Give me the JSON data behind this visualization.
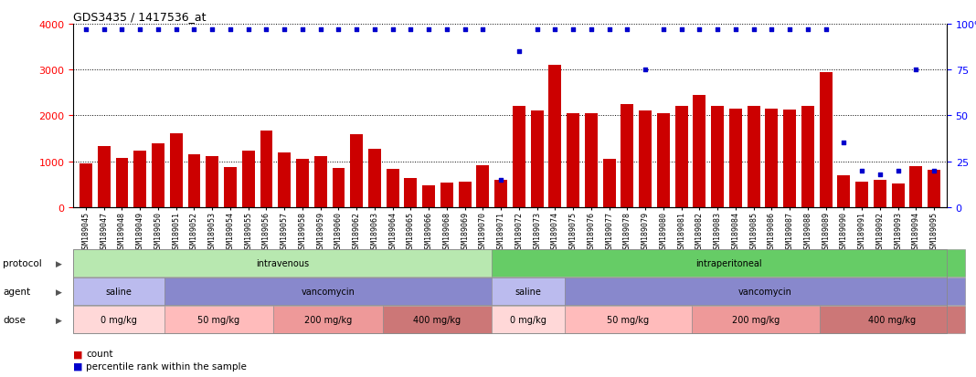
{
  "title": "GDS3435 / 1417536_at",
  "samples": [
    "GSM189045",
    "GSM189047",
    "GSM189048",
    "GSM189049",
    "GSM189050",
    "GSM189051",
    "GSM189052",
    "GSM189053",
    "GSM189054",
    "GSM189055",
    "GSM189056",
    "GSM189057",
    "GSM189058",
    "GSM189059",
    "GSM189060",
    "GSM189062",
    "GSM189063",
    "GSM189064",
    "GSM189065",
    "GSM189066",
    "GSM189068",
    "GSM189069",
    "GSM189070",
    "GSM189071",
    "GSM189072",
    "GSM189073",
    "GSM189074",
    "GSM189075",
    "GSM189076",
    "GSM189077",
    "GSM189078",
    "GSM189079",
    "GSM189080",
    "GSM189081",
    "GSM189082",
    "GSM189083",
    "GSM189084",
    "GSM189085",
    "GSM189086",
    "GSM189087",
    "GSM189088",
    "GSM189089",
    "GSM189090",
    "GSM189091",
    "GSM189092",
    "GSM189093",
    "GSM189094",
    "GSM189095"
  ],
  "bar_values": [
    950,
    1320,
    1060,
    1230,
    1380,
    1600,
    1150,
    1100,
    880,
    1230,
    1670,
    1180,
    1040,
    1110,
    850,
    1580,
    1260,
    830,
    640,
    480,
    530,
    560,
    920,
    600,
    2200,
    2100,
    3100,
    2050,
    2050,
    1050,
    2250,
    2100,
    2050,
    2200,
    2450,
    2200,
    2150,
    2200,
    2150,
    2130,
    2200,
    2950,
    700,
    550,
    600,
    520,
    900,
    820
  ],
  "percentile_values": [
    97,
    97,
    97,
    97,
    97,
    97,
    97,
    97,
    97,
    97,
    97,
    97,
    97,
    97,
    97,
    97,
    97,
    97,
    97,
    97,
    97,
    97,
    97,
    15,
    85,
    97,
    97,
    97,
    97,
    97,
    97,
    75,
    97,
    97,
    97,
    97,
    97,
    97,
    97,
    97,
    97,
    97,
    35,
    20,
    18,
    20,
    75,
    20
  ],
  "bar_color": "#cc0000",
  "dot_color": "#0000cc",
  "ylim_left": [
    0,
    4000
  ],
  "ylim_right": [
    0,
    100
  ],
  "yticks_left": [
    0,
    1000,
    2000,
    3000,
    4000
  ],
  "yticks_right": [
    0,
    25,
    50,
    75,
    100
  ],
  "protocol_groups": [
    {
      "label": "intravenous",
      "start": 0,
      "end": 22,
      "color": "#b8e8b0"
    },
    {
      "label": "intraperitoneal",
      "start": 23,
      "end": 48,
      "color": "#66cc66"
    }
  ],
  "agent_groups": [
    {
      "label": "saline",
      "start": 0,
      "end": 4,
      "color": "#bbbbee"
    },
    {
      "label": "vancomycin",
      "start": 5,
      "end": 22,
      "color": "#8888cc"
    },
    {
      "label": "saline",
      "start": 23,
      "end": 26,
      "color": "#bbbbee"
    },
    {
      "label": "vancomycin",
      "start": 27,
      "end": 48,
      "color": "#8888cc"
    }
  ],
  "dose_groups": [
    {
      "label": "0 mg/kg",
      "start": 0,
      "end": 4,
      "color": "#ffd8d8"
    },
    {
      "label": "50 mg/kg",
      "start": 5,
      "end": 10,
      "color": "#ffbbbb"
    },
    {
      "label": "200 mg/kg",
      "start": 11,
      "end": 16,
      "color": "#ee9999"
    },
    {
      "label": "400 mg/kg",
      "start": 17,
      "end": 22,
      "color": "#cc7777"
    },
    {
      "label": "0 mg/kg",
      "start": 23,
      "end": 26,
      "color": "#ffd8d8"
    },
    {
      "label": "50 mg/kg",
      "start": 27,
      "end": 33,
      "color": "#ffbbbb"
    },
    {
      "label": "200 mg/kg",
      "start": 34,
      "end": 40,
      "color": "#ee9999"
    },
    {
      "label": "400 mg/kg",
      "start": 41,
      "end": 48,
      "color": "#cc7777"
    }
  ],
  "row_labels": [
    "protocol",
    "agent",
    "dose"
  ],
  "legend_count_label": "count",
  "legend_pct_label": "percentile rank within the sample"
}
